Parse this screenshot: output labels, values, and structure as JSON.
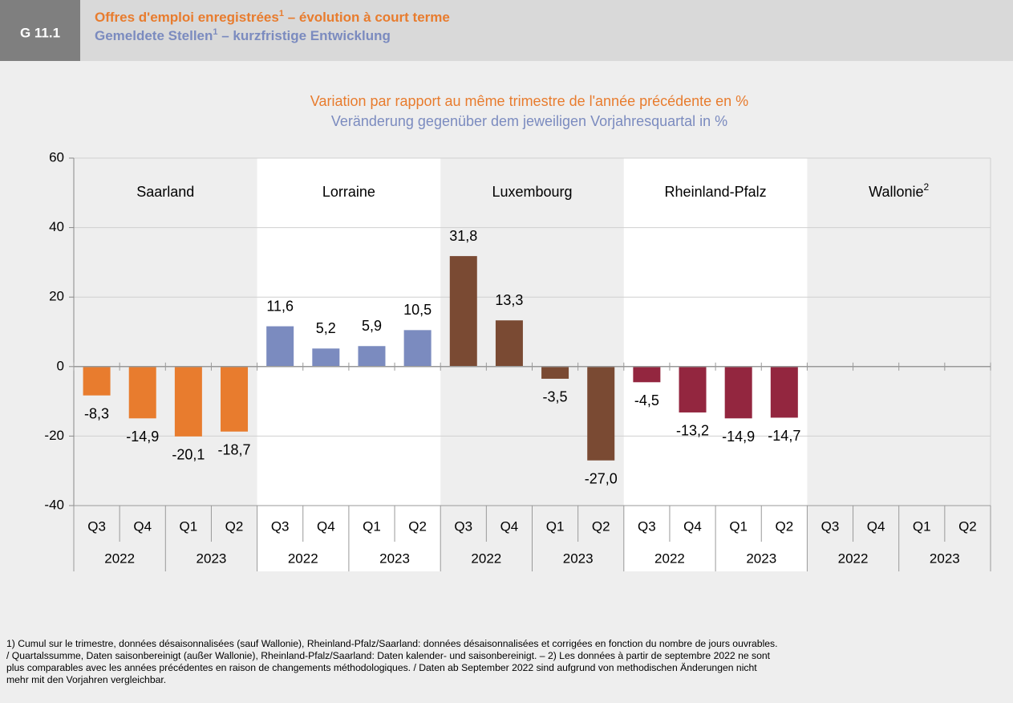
{
  "chart_data": {
    "type": "bar",
    "badge": "G 11.1",
    "title_fr": {
      "text": "Offres d'emploi enregistrées",
      "sup": "1",
      "rest": " – évolution à court terme"
    },
    "title_de": {
      "text": "Gemeldete Stellen",
      "sup": "1",
      "rest": " – kurzfristige Entwicklung"
    },
    "subtitle_fr": "Variation par rapport au même trimestre de l'année précédente en %",
    "subtitle_de": "Veränderung gegenüber dem jeweiligen Vorjahresquartal in %",
    "categories": [
      "Q3",
      "Q4",
      "Q1",
      "Q2"
    ],
    "years": [
      "2022",
      "2023"
    ],
    "series": [
      {
        "name": "Saarland",
        "color": "#e87c2e",
        "values": [
          -8.3,
          -14.9,
          -20.1,
          -18.7
        ],
        "value_labels": [
          "-8,3",
          "-14,9",
          "-20,1",
          "-18,7"
        ]
      },
      {
        "name": "Lorraine",
        "color": "#7b8bbf",
        "values": [
          11.6,
          5.2,
          5.9,
          10.5
        ],
        "value_labels": [
          "11,6",
          "5,2",
          "5,9",
          "10,5"
        ]
      },
      {
        "name": "Luxembourg",
        "color": "#7a4a33",
        "values": [
          31.8,
          13.3,
          -3.5,
          -27.0
        ],
        "value_labels": [
          "31,8",
          "13,3",
          "-3,5",
          "-27,0"
        ]
      },
      {
        "name": "Rheinland-Pfalz",
        "color": "#93263f",
        "values": [
          -4.5,
          -13.2,
          -14.9,
          -14.7
        ],
        "value_labels": [
          "-4,5",
          "-13,2",
          "-14,9",
          "-14,7"
        ]
      },
      {
        "name": "Wallonie",
        "name_sup": "2",
        "color": "#999999",
        "values": [
          null,
          null,
          null,
          null
        ]
      }
    ],
    "ylim": [
      -40,
      60
    ],
    "yticks": [
      -40,
      -20,
      0,
      20,
      40,
      60
    ],
    "grid": true,
    "footnote": [
      "1) Cumul sur le trimestre, données désaisonnalisées (sauf Wallonie), Rheinland-Pfalz/Saarland: données désaisonnalisées et corrigées en fonction du nombre de jours ouvrables.",
      "/ Quartalssumme, Daten saisonbereinigt (außer Wallonie), Rheinland-Pfalz/Saarland: Daten kalender- und saisonbereinigt. – 2) Les données à partir de septembre 2022 ne sont",
      "plus comparables avec les années précédentes en raison de changements méthodologiques. / Daten ab September 2022 sind aufgrund von methodischen Änderungen nicht",
      "mehr mit den Vorjahren vergleichbar."
    ]
  }
}
